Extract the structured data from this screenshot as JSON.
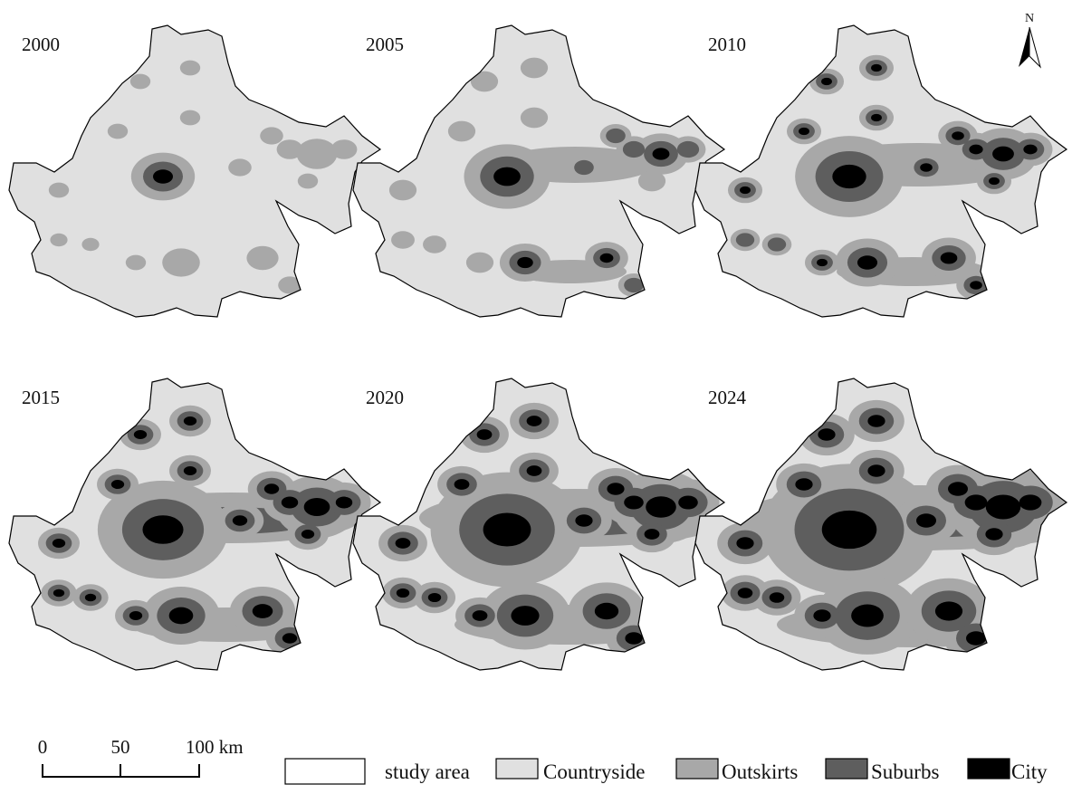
{
  "panels": [
    {
      "year": "2000"
    },
    {
      "year": "2005"
    },
    {
      "year": "2010"
    },
    {
      "year": "2015"
    },
    {
      "year": "2020"
    },
    {
      "year": "2024"
    }
  ],
  "north": "N",
  "scale_bar": {
    "labels": [
      "0",
      "50",
      "100 km"
    ]
  },
  "legend": [
    {
      "label": "study area",
      "color": "#ffffff"
    },
    {
      "label": "Countryside",
      "color": "#e0e0e0"
    },
    {
      "label": "Outskirts",
      "color": "#a8a8a8"
    },
    {
      "label": "Suburbs",
      "color": "#5e5e5e"
    },
    {
      "label": "City",
      "color": "#000000"
    }
  ]
}
